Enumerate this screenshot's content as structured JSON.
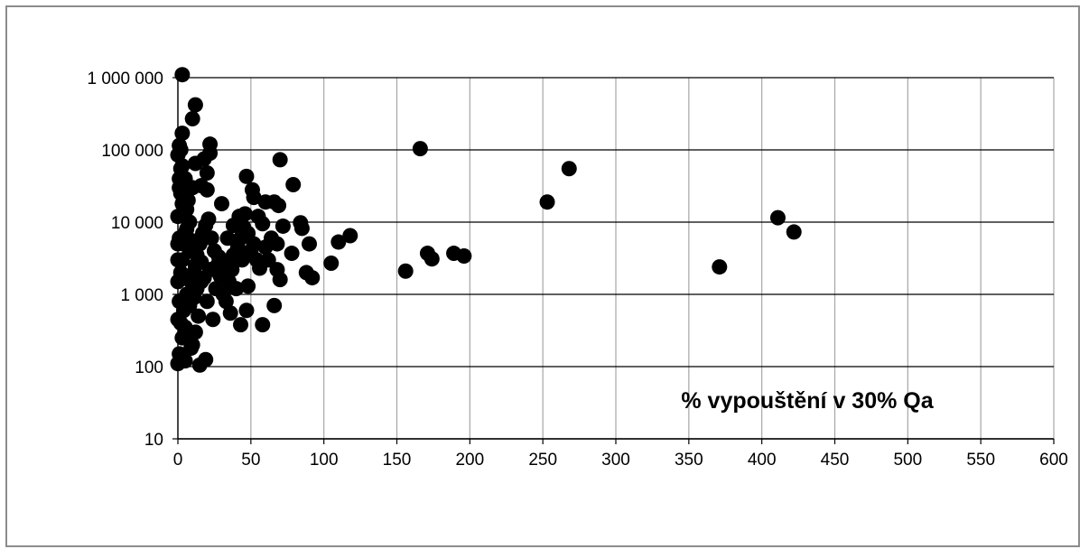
{
  "chart_data": {
    "type": "scatter",
    "title": "",
    "xlabel": "",
    "ylabel": "",
    "annotation": "% vypouštění v 30% Qa",
    "xlim": [
      0,
      600
    ],
    "ylim": [
      10,
      1000000
    ],
    "y_scale": "log",
    "grid": true,
    "marker_color": "#000000",
    "x_ticks": [
      0,
      50,
      100,
      150,
      200,
      250,
      300,
      350,
      400,
      450,
      500,
      550,
      600
    ],
    "x_tick_labels": [
      "0",
      "50",
      "100",
      "150",
      "200",
      "250",
      "300",
      "350",
      "400",
      "450",
      "500",
      "550",
      "600"
    ],
    "y_ticks": [
      10,
      100,
      1000,
      10000,
      100000,
      1000000
    ],
    "y_tick_labels": [
      "10",
      "100",
      "1 000",
      "10 000",
      "100 000",
      "1 000 000"
    ],
    "series": [
      {
        "points": [
          [
            3,
            1100000
          ],
          [
            12,
            420000
          ],
          [
            10,
            270000
          ],
          [
            3,
            170000
          ],
          [
            1,
            115000
          ],
          [
            2,
            100000
          ],
          [
            22,
            120000
          ],
          [
            22,
            90000
          ],
          [
            18,
            75000
          ],
          [
            12,
            65000
          ],
          [
            0,
            85000
          ],
          [
            2,
            55000
          ],
          [
            5,
            40000
          ],
          [
            10,
            30000
          ],
          [
            20,
            48000
          ],
          [
            1,
            30000
          ],
          [
            16,
            32000
          ],
          [
            20,
            28000
          ],
          [
            47,
            43000
          ],
          [
            70,
            73000
          ],
          [
            79,
            33000
          ],
          [
            30,
            18000
          ],
          [
            51,
            28000
          ],
          [
            52,
            22000
          ],
          [
            60,
            19000
          ],
          [
            66,
            19000
          ],
          [
            69,
            17000
          ],
          [
            84,
            9800
          ],
          [
            85,
            8200
          ],
          [
            72,
            8800
          ],
          [
            90,
            5000
          ],
          [
            110,
            5300
          ],
          [
            118,
            6500
          ],
          [
            105,
            2700
          ],
          [
            88,
            2000
          ],
          [
            92,
            1700
          ],
          [
            68,
            2200
          ],
          [
            62,
            3000
          ],
          [
            70,
            1600
          ],
          [
            78,
            3700
          ],
          [
            56,
            2300
          ],
          [
            66,
            700
          ],
          [
            58,
            380
          ],
          [
            47,
            600
          ],
          [
            43,
            380
          ],
          [
            48,
            1300
          ],
          [
            40,
            1200
          ],
          [
            36,
            550
          ],
          [
            30,
            2000
          ],
          [
            34,
            6000
          ],
          [
            38,
            9000
          ],
          [
            42,
            12000
          ],
          [
            46,
            13000
          ],
          [
            55,
            12000
          ],
          [
            58,
            9500
          ],
          [
            48,
            7000
          ],
          [
            52,
            5000
          ],
          [
            44,
            3000
          ],
          [
            38,
            3500
          ],
          [
            32,
            2500
          ],
          [
            26,
            1200
          ],
          [
            24,
            450
          ],
          [
            20,
            800
          ],
          [
            16,
            1500
          ],
          [
            12,
            2500
          ],
          [
            8,
            4000
          ],
          [
            6,
            8000
          ],
          [
            4,
            12000
          ],
          [
            3,
            18000
          ],
          [
            2,
            25000
          ],
          [
            1,
            6000
          ],
          [
            0,
            3000
          ],
          [
            0,
            1500
          ],
          [
            1,
            800
          ],
          [
            2,
            400
          ],
          [
            3,
            250
          ],
          [
            1,
            150
          ],
          [
            0,
            110
          ],
          [
            5,
            120
          ],
          [
            15,
            105
          ],
          [
            19,
            125
          ],
          [
            10,
            200
          ],
          [
            12,
            300
          ],
          [
            14,
            500
          ],
          [
            8,
            700
          ],
          [
            6,
            1000
          ],
          [
            9,
            1500
          ],
          [
            11,
            2000
          ],
          [
            13,
            3500
          ],
          [
            15,
            5000
          ],
          [
            17,
            7000
          ],
          [
            19,
            9000
          ],
          [
            21,
            11000
          ],
          [
            23,
            6000
          ],
          [
            25,
            4000
          ],
          [
            27,
            2500
          ],
          [
            29,
            1800
          ],
          [
            31,
            1000
          ],
          [
            33,
            800
          ],
          [
            35,
            1500
          ],
          [
            37,
            2200
          ],
          [
            39,
            3000
          ],
          [
            41,
            4500
          ],
          [
            43,
            6000
          ],
          [
            45,
            8500
          ],
          [
            50,
            4000
          ],
          [
            54,
            3000
          ],
          [
            60,
            4500
          ],
          [
            64,
            6000
          ],
          [
            68,
            5000
          ],
          [
            4,
            600
          ],
          [
            5,
            350
          ],
          [
            7,
            250
          ],
          [
            9,
            180
          ],
          [
            2,
            2000
          ],
          [
            3,
            3000
          ],
          [
            4,
            5000
          ],
          [
            5,
            7000
          ],
          [
            6,
            15000
          ],
          [
            7,
            20000
          ],
          [
            8,
            10000
          ],
          [
            10,
            5500
          ],
          [
            11,
            900
          ],
          [
            13,
            1200
          ],
          [
            16,
            2800
          ],
          [
            18,
            1700
          ],
          [
            22,
            2200
          ],
          [
            28,
            3300
          ],
          [
            0,
            450
          ],
          [
            0,
            5000
          ],
          [
            0,
            12000
          ],
          [
            1,
            40000
          ],
          [
            3,
            60000
          ],
          [
            166,
            104000
          ],
          [
            268,
            55000
          ],
          [
            253,
            19000
          ],
          [
            156,
            2100
          ],
          [
            171,
            3700
          ],
          [
            174,
            3100
          ],
          [
            189,
            3700
          ],
          [
            196,
            3400
          ],
          [
            371,
            2400
          ],
          [
            411,
            11500
          ],
          [
            422,
            7300
          ]
        ]
      }
    ]
  }
}
